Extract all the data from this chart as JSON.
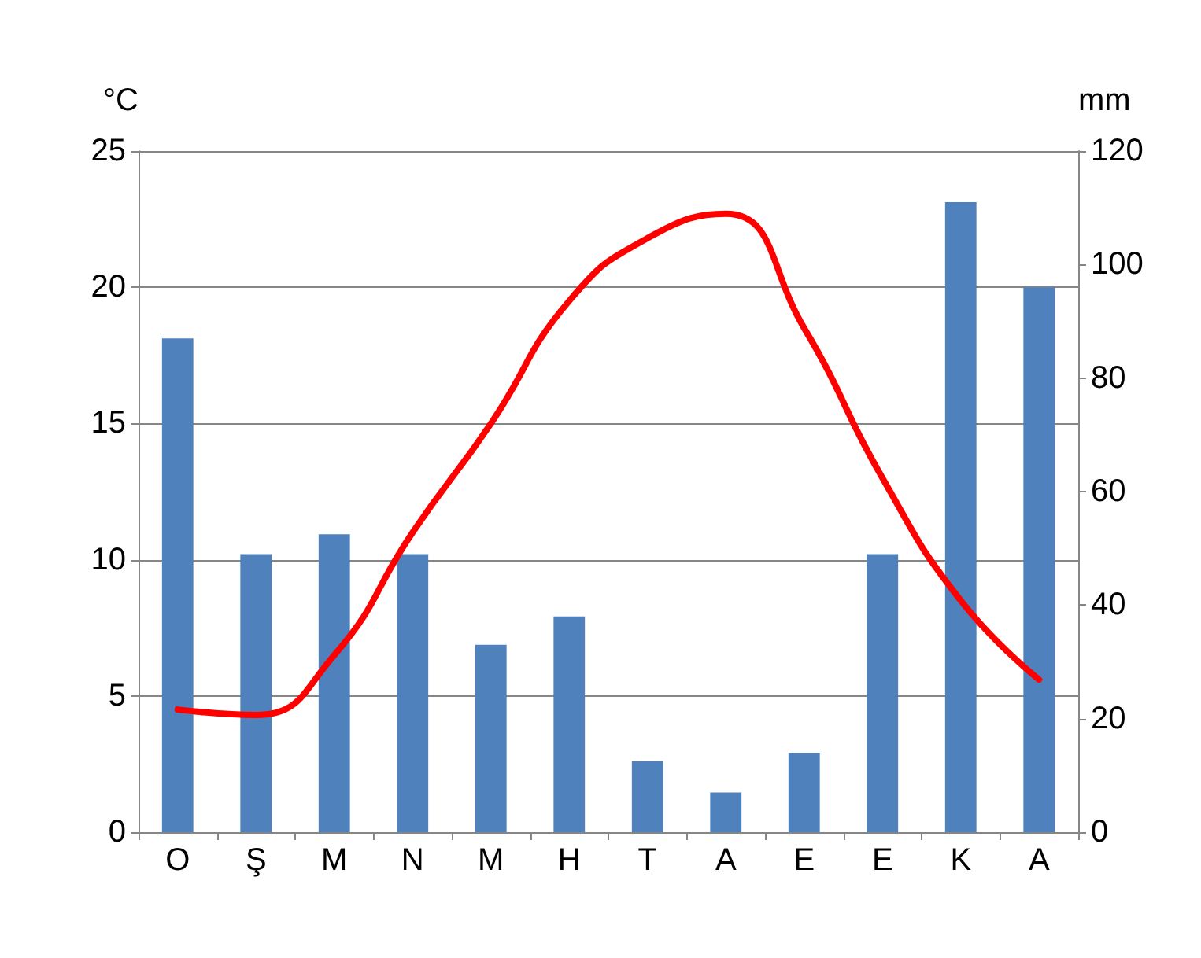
{
  "chart_data": {
    "type": "bar",
    "ylabel": "°C",
    "y2label": "mm",
    "categories": [
      "O",
      "Ş",
      "M",
      "N",
      "M",
      "H",
      "T",
      "A",
      "E",
      "E",
      "K",
      "A"
    ],
    "series": [
      {
        "axis": "y2",
        "color": "#4f81bd",
        "values": [
          87,
          49,
          52.5,
          49,
          33,
          38,
          12.5,
          7,
          14,
          49,
          111,
          96
        ]
      },
      {
        "type": "line",
        "axis": "y",
        "color": "#ff0000",
        "values": [
          4.5,
          4.3,
          6.5,
          11,
          15,
          19.5,
          21.8,
          22.7,
          18.5,
          13,
          8.5,
          5.6
        ]
      }
    ],
    "ylim": [
      0,
      25
    ],
    "yticks": [
      0,
      5,
      10,
      15,
      20,
      25
    ],
    "y2lim": [
      0,
      120
    ],
    "y2ticks": [
      0,
      20,
      40,
      60,
      80,
      100,
      120
    ],
    "grid": "y",
    "marker": "none",
    "line_style": "solid"
  }
}
